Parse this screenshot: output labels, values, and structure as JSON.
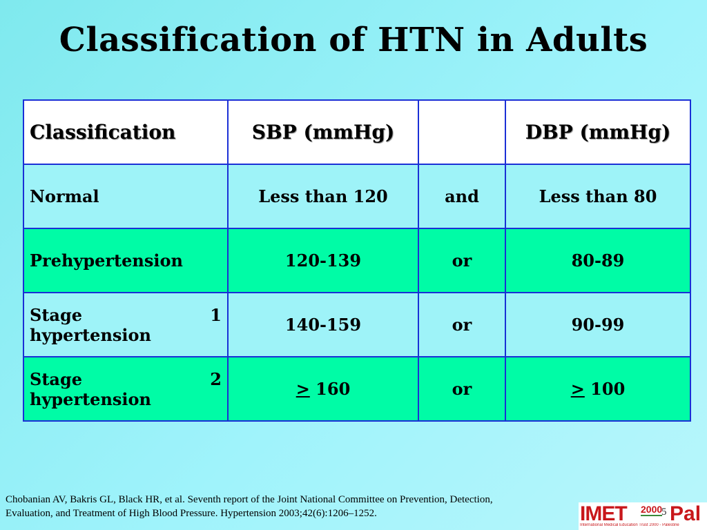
{
  "title": "Classification of HTN in Adults",
  "table": {
    "header": {
      "classification": "Classification",
      "sbp": "SBP (mmHg)",
      "connector": "",
      "dbp": "DBP (mmHg)"
    },
    "rows": [
      {
        "classification": "Normal",
        "sbp": "Less than 120",
        "connector": "and",
        "dbp": "Less than 80"
      },
      {
        "classification": "Prehypertension",
        "sbp": "120-139",
        "connector": "or",
        "dbp": "80-89"
      },
      {
        "classification_word1": "Stage",
        "classification_num": "1",
        "classification_line2": "hypertension",
        "sbp": "140-159",
        "connector": "or",
        "dbp": "90-99"
      },
      {
        "classification_word1": "Stage",
        "classification_num": "2",
        "classification_line2": "hypertension",
        "sbp_symbol": ">",
        "sbp_value": " 160",
        "connector": "or",
        "dbp_symbol": ">",
        "dbp_value": " 100"
      }
    ]
  },
  "citation": {
    "line1": "Chobanian AV, Bakris GL, Black HR, et al. Seventh report of the Joint National Committee on Prevention, Detection,",
    "line2": "Evaluation, and Treatment of High Blood Pressure. Hypertension 2003;42(6):1206–1252."
  },
  "page_number": "5",
  "logo": {
    "imet": "IMET",
    "year": "2000",
    "pal": "Pal",
    "tagline": "International Medical Education Trust 2000 - Palestine"
  },
  "colors": {
    "background": "#9ff3fb",
    "row_light": "#9ef3f8",
    "row_green": "#00fca6",
    "border": "#1a2fd6",
    "logo_red": "#c8171b"
  }
}
